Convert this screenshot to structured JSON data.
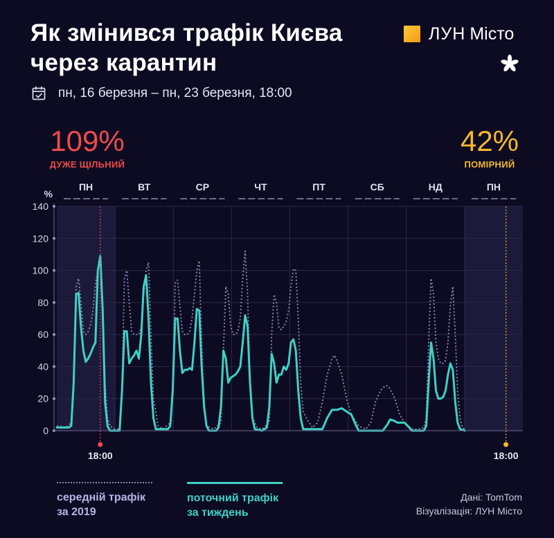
{
  "title": "Як змінився трафік Києва через карантин",
  "logo": {
    "brand": "ЛУН",
    "sub": "Місто"
  },
  "date_range": "пн, 16 березня – пн, 23 березня, 18:00",
  "highlight_left": {
    "value": "109%",
    "label": "ДУЖЕ ЩІЛЬНИЙ",
    "color": "#ef4b4b"
  },
  "highlight_right": {
    "value": "42%",
    "label": "ПОМІРНИЙ",
    "color": "#f5b82b"
  },
  "legend": {
    "avg_2019": [
      "середній трафік",
      "за 2019"
    ],
    "current": [
      "поточний трафік",
      "за тиждень"
    ]
  },
  "credits": {
    "data": "Дані: TomTom",
    "viz": "Візуалізація: ЛУН Місто"
  },
  "colors": {
    "current": "#3ed1c6",
    "avg": "#8a84ad",
    "marker_left": "#ef4b4b",
    "marker_right": "#f5b82b"
  },
  "chart_data": {
    "type": "line",
    "ylabel": "%",
    "ylim": [
      0,
      140
    ],
    "yticks": [
      0,
      20,
      40,
      60,
      80,
      100,
      120,
      140
    ],
    "xlim": [
      0,
      193
    ],
    "grid": true,
    "days": [
      "ПН",
      "ВТ",
      "СР",
      "ЧТ",
      "ПТ",
      "СБ",
      "НД",
      "ПН"
    ],
    "highlighted_days": [
      0,
      7
    ],
    "markers": [
      {
        "x": 18,
        "label": "18:00",
        "color": "#ef4b4b"
      },
      {
        "x": 186,
        "label": "18:00",
        "color": "#f5b82b"
      }
    ],
    "series": [
      {
        "name": "середній трафік за 2019",
        "style": "dotted",
        "points": [
          [
            0,
            3
          ],
          [
            4,
            2
          ],
          [
            6,
            5
          ],
          [
            7,
            30
          ],
          [
            8,
            90
          ],
          [
            9,
            95
          ],
          [
            10,
            80
          ],
          [
            11,
            62
          ],
          [
            12,
            60
          ],
          [
            13,
            62
          ],
          [
            14,
            66
          ],
          [
            15,
            75
          ],
          [
            16,
            92
          ],
          [
            17,
            100
          ],
          [
            18,
            108
          ],
          [
            19,
            75
          ],
          [
            20,
            30
          ],
          [
            21,
            8
          ],
          [
            22,
            3
          ],
          [
            24,
            1
          ],
          [
            26,
            1
          ],
          [
            27,
            25
          ],
          [
            28,
            95
          ],
          [
            29,
            100
          ],
          [
            30,
            80
          ],
          [
            31,
            62
          ],
          [
            32,
            60
          ],
          [
            33,
            60
          ],
          [
            34,
            60
          ],
          [
            35,
            65
          ],
          [
            36,
            85
          ],
          [
            37,
            100
          ],
          [
            38,
            105
          ],
          [
            39,
            60
          ],
          [
            40,
            20
          ],
          [
            42,
            3
          ],
          [
            44,
            1
          ],
          [
            47,
            5
          ],
          [
            48,
            25
          ],
          [
            49,
            92
          ],
          [
            50,
            94
          ],
          [
            51,
            78
          ],
          [
            52,
            62
          ],
          [
            53,
            60
          ],
          [
            54,
            60
          ],
          [
            55,
            62
          ],
          [
            56,
            70
          ],
          [
            57,
            85
          ],
          [
            58,
            100
          ],
          [
            59,
            106
          ],
          [
            60,
            55
          ],
          [
            61,
            15
          ],
          [
            62,
            3
          ],
          [
            65,
            1
          ],
          [
            68,
            5
          ],
          [
            69,
            50
          ],
          [
            70,
            90
          ],
          [
            71,
            85
          ],
          [
            72,
            65
          ],
          [
            73,
            60
          ],
          [
            74,
            60
          ],
          [
            75,
            62
          ],
          [
            76,
            70
          ],
          [
            77,
            95
          ],
          [
            78,
            112
          ],
          [
            79,
            85
          ],
          [
            80,
            30
          ],
          [
            81,
            8
          ],
          [
            83,
            2
          ],
          [
            85,
            1
          ],
          [
            88,
            5
          ],
          [
            89,
            60
          ],
          [
            90,
            85
          ],
          [
            91,
            80
          ],
          [
            92,
            64
          ],
          [
            93,
            63
          ],
          [
            94,
            65
          ],
          [
            95,
            68
          ],
          [
            96,
            75
          ],
          [
            97,
            90
          ],
          [
            98,
            101
          ],
          [
            99,
            100
          ],
          [
            100,
            70
          ],
          [
            101,
            30
          ],
          [
            102,
            12
          ],
          [
            104,
            6
          ],
          [
            106,
            2
          ],
          [
            108,
            5
          ],
          [
            110,
            18
          ],
          [
            112,
            35
          ],
          [
            114,
            45
          ],
          [
            115,
            47
          ],
          [
            116,
            44
          ],
          [
            118,
            35
          ],
          [
            120,
            20
          ],
          [
            122,
            10
          ],
          [
            125,
            3
          ],
          [
            128,
            1
          ],
          [
            130,
            5
          ],
          [
            132,
            18
          ],
          [
            134,
            25
          ],
          [
            136,
            28
          ],
          [
            137,
            28
          ],
          [
            138,
            26
          ],
          [
            140,
            20
          ],
          [
            142,
            10
          ],
          [
            144,
            5
          ],
          [
            147,
            1
          ],
          [
            150,
            1
          ],
          [
            152,
            2
          ],
          [
            153,
            8
          ],
          [
            154,
            55
          ],
          [
            155,
            95
          ],
          [
            156,
            85
          ],
          [
            157,
            55
          ],
          [
            158,
            45
          ],
          [
            159,
            42
          ],
          [
            160,
            42
          ],
          [
            161,
            44
          ],
          [
            162,
            55
          ],
          [
            163,
            78
          ],
          [
            164,
            90
          ],
          [
            165,
            60
          ],
          [
            166,
            25
          ],
          [
            167,
            8
          ],
          [
            168,
            2
          ],
          [
            169,
            1
          ]
        ]
      },
      {
        "name": "поточний трафік за тиждень",
        "style": "solid",
        "points": [
          [
            0,
            2
          ],
          [
            5,
            2
          ],
          [
            6,
            3
          ],
          [
            7,
            30
          ],
          [
            8,
            85
          ],
          [
            9,
            86
          ],
          [
            10,
            65
          ],
          [
            11,
            50
          ],
          [
            12,
            43
          ],
          [
            13,
            45
          ],
          [
            14,
            48
          ],
          [
            15,
            52
          ],
          [
            16,
            55
          ],
          [
            17,
            100
          ],
          [
            18,
            109
          ],
          [
            19,
            75
          ],
          [
            20,
            18
          ],
          [
            21,
            3
          ],
          [
            22,
            0
          ],
          [
            26,
            0
          ],
          [
            27,
            25
          ],
          [
            28,
            62
          ],
          [
            29,
            62
          ],
          [
            30,
            42
          ],
          [
            31,
            45
          ],
          [
            32,
            47
          ],
          [
            33,
            50
          ],
          [
            34,
            45
          ],
          [
            35,
            60
          ],
          [
            36,
            90
          ],
          [
            37,
            97
          ],
          [
            38,
            70
          ],
          [
            39,
            30
          ],
          [
            40,
            8
          ],
          [
            41,
            1
          ],
          [
            46,
            1
          ],
          [
            47,
            3
          ],
          [
            48,
            25
          ],
          [
            49,
            70
          ],
          [
            50,
            70
          ],
          [
            51,
            50
          ],
          [
            52,
            36
          ],
          [
            53,
            38
          ],
          [
            54,
            38
          ],
          [
            55,
            39
          ],
          [
            56,
            38
          ],
          [
            57,
            55
          ],
          [
            58,
            76
          ],
          [
            59,
            75
          ],
          [
            60,
            40
          ],
          [
            61,
            15
          ],
          [
            62,
            3
          ],
          [
            63,
            0
          ],
          [
            66,
            0
          ],
          [
            67,
            2
          ],
          [
            68,
            15
          ],
          [
            69,
            50
          ],
          [
            70,
            45
          ],
          [
            71,
            30
          ],
          [
            72,
            33
          ],
          [
            73,
            34
          ],
          [
            74,
            35
          ],
          [
            75,
            37
          ],
          [
            76,
            40
          ],
          [
            77,
            55
          ],
          [
            78,
            72
          ],
          [
            79,
            65
          ],
          [
            80,
            30
          ],
          [
            81,
            8
          ],
          [
            82,
            1
          ],
          [
            85,
            0
          ],
          [
            87,
            2
          ],
          [
            88,
            15
          ],
          [
            89,
            48
          ],
          [
            90,
            42
          ],
          [
            91,
            30
          ],
          [
            92,
            35
          ],
          [
            93,
            35
          ],
          [
            94,
            40
          ],
          [
            95,
            38
          ],
          [
            96,
            42
          ],
          [
            97,
            55
          ],
          [
            98,
            57
          ],
          [
            99,
            50
          ],
          [
            100,
            25
          ],
          [
            101,
            8
          ],
          [
            102,
            1
          ],
          [
            110,
            1
          ],
          [
            112,
            8
          ],
          [
            114,
            13
          ],
          [
            116,
            13
          ],
          [
            118,
            14
          ],
          [
            120,
            12
          ],
          [
            122,
            10
          ],
          [
            124,
            3
          ],
          [
            125,
            0
          ],
          [
            135,
            0
          ],
          [
            137,
            4
          ],
          [
            138,
            7
          ],
          [
            140,
            6
          ],
          [
            141,
            5
          ],
          [
            142,
            5
          ],
          [
            144,
            5
          ],
          [
            146,
            2
          ],
          [
            147,
            0
          ],
          [
            152,
            0
          ],
          [
            153,
            3
          ],
          [
            154,
            30
          ],
          [
            155,
            55
          ],
          [
            156,
            45
          ],
          [
            157,
            25
          ],
          [
            158,
            20
          ],
          [
            159,
            20
          ],
          [
            160,
            21
          ],
          [
            161,
            25
          ],
          [
            162,
            35
          ],
          [
            163,
            42
          ],
          [
            164,
            38
          ],
          [
            165,
            18
          ],
          [
            166,
            5
          ],
          [
            167,
            1
          ],
          [
            169,
            0
          ]
        ]
      }
    ]
  }
}
